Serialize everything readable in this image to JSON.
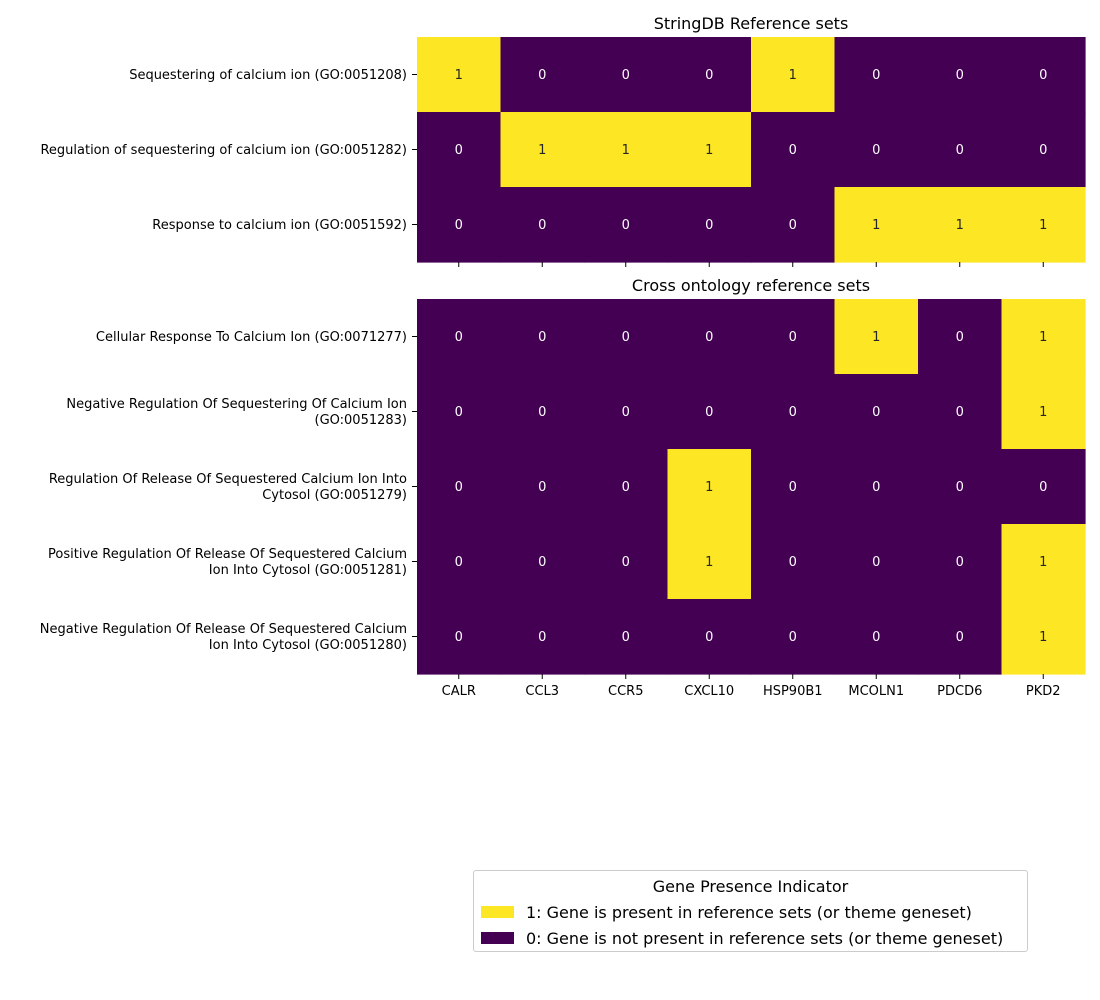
{
  "chart_data": [
    {
      "type": "heatmap",
      "title": "StringDB Reference sets",
      "rows": [
        [
          "Sequestering of calcium ion (GO:0051208)"
        ],
        [
          "Regulation of sequestering of calcium ion (GO:0051282)"
        ],
        [
          "Response to calcium ion (GO:0051592)"
        ]
      ],
      "columns": [
        "CALR",
        "CCL3",
        "CCR5",
        "CXCL10",
        "HSP90B1",
        "MCOLN1",
        "PDCD6",
        "PKD2"
      ],
      "values": [
        [
          1,
          0,
          0,
          0,
          1,
          0,
          0,
          0
        ],
        [
          0,
          1,
          1,
          1,
          0,
          0,
          0,
          0
        ],
        [
          0,
          0,
          0,
          0,
          0,
          1,
          1,
          1
        ]
      ],
      "show_column_labels": false
    },
    {
      "type": "heatmap",
      "title": "Cross ontology reference sets",
      "rows": [
        [
          "Cellular Response To Calcium Ion (GO:0071277)"
        ],
        [
          "Negative Regulation Of Sequestering Of Calcium Ion",
          "(GO:0051283)"
        ],
        [
          "Regulation Of Release Of Sequestered Calcium Ion Into",
          "Cytosol (GO:0051279)"
        ],
        [
          "Positive Regulation Of Release Of Sequestered Calcium",
          "Ion Into Cytosol (GO:0051281)"
        ],
        [
          "Negative Regulation Of Release Of Sequestered Calcium",
          "Ion Into Cytosol (GO:0051280)"
        ]
      ],
      "columns": [
        "CALR",
        "CCL3",
        "CCR5",
        "CXCL10",
        "HSP90B1",
        "MCOLN1",
        "PDCD6",
        "PKD2"
      ],
      "values": [
        [
          0,
          0,
          0,
          0,
          0,
          1,
          0,
          1
        ],
        [
          0,
          0,
          0,
          0,
          0,
          0,
          0,
          1
        ],
        [
          0,
          0,
          0,
          1,
          0,
          0,
          0,
          0
        ],
        [
          0,
          0,
          0,
          1,
          0,
          0,
          0,
          1
        ],
        [
          0,
          0,
          0,
          0,
          0,
          0,
          0,
          1
        ]
      ],
      "show_column_labels": true
    }
  ],
  "colors": {
    "present": "#fde725",
    "absent": "#440154",
    "text_on_present": "#262626",
    "text_on_absent": "#ffffff"
  },
  "legend": {
    "title": "Gene Presence Indicator",
    "items": [
      {
        "label": "1: Gene is present in reference sets (or theme geneset)",
        "color": "#fde725"
      },
      {
        "label": "0: Gene is not present in reference sets (or theme geneset)",
        "color": "#440154"
      }
    ]
  }
}
